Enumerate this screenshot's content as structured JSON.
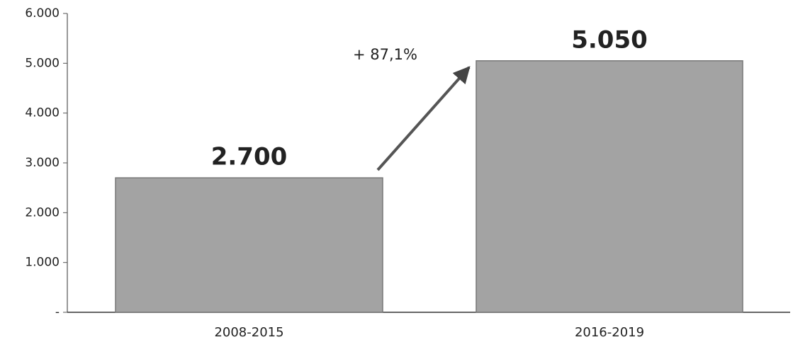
{
  "chart_data": {
    "type": "bar",
    "categories": [
      "2008-2015",
      "2016-2019"
    ],
    "values": [
      2700,
      5050
    ],
    "value_labels": [
      "2.700",
      "5.050"
    ],
    "color": "#a3a3a3",
    "annotation": "+ 87,1%",
    "ylim": [
      0,
      6000
    ],
    "yticks": [
      {
        "value": 0,
        "label": "-"
      },
      {
        "value": 1000,
        "label": "1.000"
      },
      {
        "value": 2000,
        "label": "2.000"
      },
      {
        "value": 3000,
        "label": "3.000"
      },
      {
        "value": 4000,
        "label": "4.000"
      },
      {
        "value": 5000,
        "label": "5.000"
      },
      {
        "value": 6000,
        "label": "6.000"
      }
    ],
    "grid": false
  }
}
